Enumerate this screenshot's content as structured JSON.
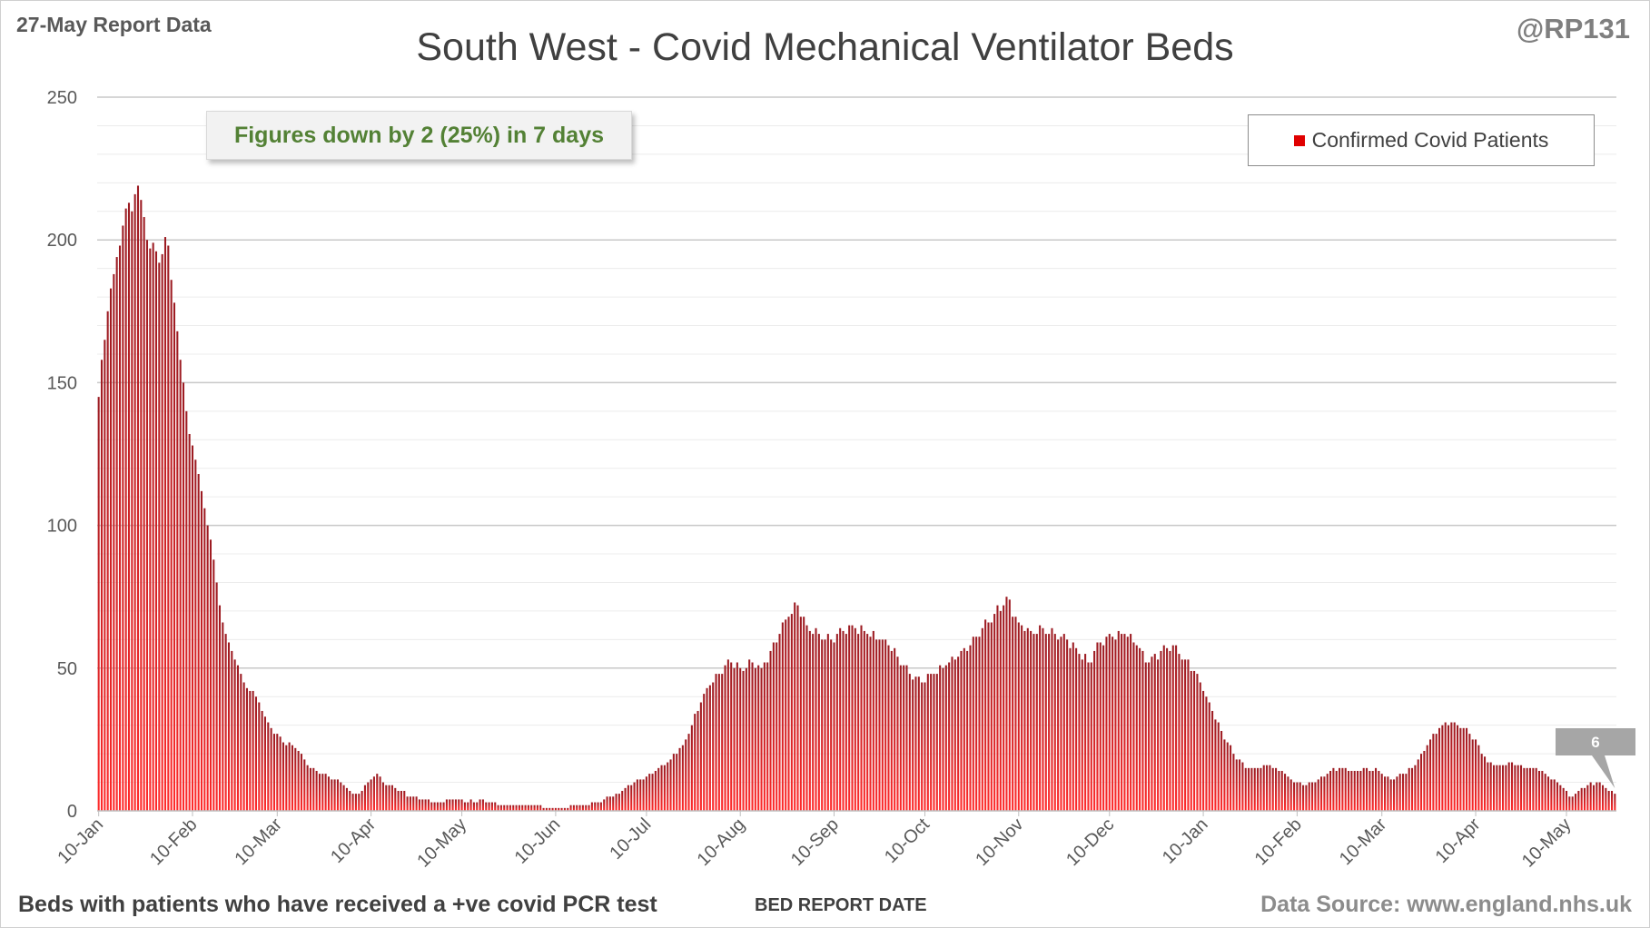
{
  "header": {
    "report_date": "27-May Report Data",
    "handle": "@RP131",
    "title": "South West - Covid Mechanical Ventilator Beds"
  },
  "footer": {
    "note": "Beds with patients who have received a +ve covid PCR test",
    "source": "Data Source: www.england.nhs.uk",
    "x_axis_title": "BED REPORT DATE"
  },
  "callout": {
    "text": "Figures down by 2 (25%) in 7 days"
  },
  "legend": {
    "label": "Confirmed Covid Patients",
    "color": "#e00000"
  },
  "chart_data": {
    "type": "bar",
    "title": "South West - Covid Mechanical Ventilator Beds",
    "xlabel": "BED REPORT DATE",
    "ylabel": "",
    "ylim": [
      0,
      250
    ],
    "y_ticks": [
      0,
      50,
      100,
      150,
      200,
      250
    ],
    "grid": true,
    "legend_position": "top-right",
    "bar_color_top": "#9b1b22",
    "bar_color_bottom": "#ff2a2a",
    "x_tick_labels": [
      "10-Jan",
      "10-Feb",
      "10-Mar",
      "10-Apr",
      "10-May",
      "10-Jun",
      "10-Jul",
      "10-Aug",
      "10-Sep",
      "10-Oct",
      "10-Nov",
      "10-Dec",
      "10-Jan",
      "10-Feb",
      "10-Mar",
      "10-Apr",
      "10-May"
    ],
    "first_date": "2021-01-10",
    "last_date": "2022-05-26",
    "series": [
      {
        "name": "Confirmed Covid Patients",
        "anchors": [
          [
            "2021-01-10",
            145
          ],
          [
            "2021-01-11",
            158
          ],
          [
            "2021-01-12",
            165
          ],
          [
            "2021-01-13",
            175
          ],
          [
            "2021-01-14",
            183
          ],
          [
            "2021-01-15",
            188
          ],
          [
            "2021-01-16",
            194
          ],
          [
            "2021-01-17",
            198
          ],
          [
            "2021-01-18",
            205
          ],
          [
            "2021-01-19",
            211
          ],
          [
            "2021-01-20",
            213
          ],
          [
            "2021-01-21",
            210
          ],
          [
            "2021-01-22",
            216
          ],
          [
            "2021-01-23",
            219
          ],
          [
            "2021-01-24",
            214
          ],
          [
            "2021-01-25",
            208
          ],
          [
            "2021-01-26",
            200
          ],
          [
            "2021-01-27",
            197
          ],
          [
            "2021-01-28",
            199
          ],
          [
            "2021-01-29",
            196
          ],
          [
            "2021-01-30",
            192
          ],
          [
            "2021-01-31",
            195
          ],
          [
            "2021-02-01",
            201
          ],
          [
            "2021-02-02",
            198
          ],
          [
            "2021-02-03",
            186
          ],
          [
            "2021-02-04",
            178
          ],
          [
            "2021-02-05",
            168
          ],
          [
            "2021-02-06",
            158
          ],
          [
            "2021-02-07",
            150
          ],
          [
            "2021-02-08",
            140
          ],
          [
            "2021-02-09",
            132
          ],
          [
            "2021-02-10",
            128
          ],
          [
            "2021-02-11",
            123
          ],
          [
            "2021-02-12",
            118
          ],
          [
            "2021-02-13",
            112
          ],
          [
            "2021-02-14",
            106
          ],
          [
            "2021-02-15",
            100
          ],
          [
            "2021-02-16",
            95
          ],
          [
            "2021-02-17",
            88
          ],
          [
            "2021-02-18",
            80
          ],
          [
            "2021-02-19",
            72
          ],
          [
            "2021-02-20",
            66
          ],
          [
            "2021-02-21",
            62
          ],
          [
            "2021-02-22",
            59
          ],
          [
            "2021-02-23",
            56
          ],
          [
            "2021-02-24",
            53
          ],
          [
            "2021-02-25",
            51
          ],
          [
            "2021-02-26",
            48
          ],
          [
            "2021-02-27",
            45
          ],
          [
            "2021-02-28",
            43
          ],
          [
            "2021-03-01",
            42
          ],
          [
            "2021-03-02",
            42
          ],
          [
            "2021-03-03",
            40
          ],
          [
            "2021-03-04",
            38
          ],
          [
            "2021-03-05",
            35
          ],
          [
            "2021-03-06",
            33
          ],
          [
            "2021-03-07",
            31
          ],
          [
            "2021-03-08",
            29
          ],
          [
            "2021-03-10",
            27
          ],
          [
            "2021-03-12",
            24
          ],
          [
            "2021-03-15",
            23
          ],
          [
            "2021-03-18",
            20
          ],
          [
            "2021-03-20",
            16
          ],
          [
            "2021-03-23",
            14
          ],
          [
            "2021-03-27",
            12
          ],
          [
            "2021-03-31",
            10
          ],
          [
            "2021-04-03",
            7
          ],
          [
            "2021-04-06",
            6
          ],
          [
            "2021-04-08",
            9
          ],
          [
            "2021-04-10",
            11
          ],
          [
            "2021-04-12",
            13
          ],
          [
            "2021-04-14",
            10
          ],
          [
            "2021-04-17",
            9
          ],
          [
            "2021-04-20",
            7
          ],
          [
            "2021-04-23",
            5
          ],
          [
            "2021-04-28",
            4
          ],
          [
            "2021-05-03",
            3
          ],
          [
            "2021-05-08",
            4
          ],
          [
            "2021-05-12",
            3
          ],
          [
            "2021-05-16",
            4
          ],
          [
            "2021-05-20",
            3
          ],
          [
            "2021-05-25",
            2
          ],
          [
            "2021-05-30",
            2
          ],
          [
            "2021-06-04",
            2
          ],
          [
            "2021-06-08",
            1
          ],
          [
            "2021-06-12",
            1
          ],
          [
            "2021-06-16",
            2
          ],
          [
            "2021-06-20",
            2
          ],
          [
            "2021-06-24",
            3
          ],
          [
            "2021-06-28",
            5
          ],
          [
            "2021-07-02",
            7
          ],
          [
            "2021-07-06",
            10
          ],
          [
            "2021-07-10",
            12
          ],
          [
            "2021-07-14",
            15
          ],
          [
            "2021-07-18",
            18
          ],
          [
            "2021-07-22",
            23
          ],
          [
            "2021-07-25",
            30
          ],
          [
            "2021-07-28",
            38
          ],
          [
            "2021-07-31",
            44
          ],
          [
            "2021-08-03",
            48
          ],
          [
            "2021-08-06",
            53
          ],
          [
            "2021-08-10",
            50
          ],
          [
            "2021-08-14",
            52
          ],
          [
            "2021-08-17",
            50
          ],
          [
            "2021-08-20",
            56
          ],
          [
            "2021-08-23",
            62
          ],
          [
            "2021-08-26",
            68
          ],
          [
            "2021-08-29",
            72
          ],
          [
            "2021-09-01",
            65
          ],
          [
            "2021-09-05",
            62
          ],
          [
            "2021-09-09",
            60
          ],
          [
            "2021-09-13",
            63
          ],
          [
            "2021-09-17",
            64
          ],
          [
            "2021-09-21",
            62
          ],
          [
            "2021-09-25",
            60
          ],
          [
            "2021-09-28",
            58
          ],
          [
            "2021-10-01",
            54
          ],
          [
            "2021-10-05",
            48
          ],
          [
            "2021-10-09",
            45
          ],
          [
            "2021-10-13",
            48
          ],
          [
            "2021-10-17",
            51
          ],
          [
            "2021-10-21",
            54
          ],
          [
            "2021-10-25",
            58
          ],
          [
            "2021-10-29",
            64
          ],
          [
            "2021-11-02",
            69
          ],
          [
            "2021-11-06",
            75
          ],
          [
            "2021-11-10",
            66
          ],
          [
            "2021-11-14",
            63
          ],
          [
            "2021-11-18",
            64
          ],
          [
            "2021-11-22",
            62
          ],
          [
            "2021-11-26",
            60
          ],
          [
            "2021-11-30",
            55
          ],
          [
            "2021-12-03",
            52
          ],
          [
            "2021-12-07",
            59
          ],
          [
            "2021-12-11",
            61
          ],
          [
            "2021-12-15",
            62
          ],
          [
            "2021-12-19",
            58
          ],
          [
            "2021-12-23",
            52
          ],
          [
            "2021-12-27",
            56
          ],
          [
            "2021-12-31",
            58
          ],
          [
            "2022-01-04",
            53
          ],
          [
            "2022-01-08",
            48
          ],
          [
            "2022-01-10",
            42
          ],
          [
            "2022-01-13",
            35
          ],
          [
            "2022-01-16",
            28
          ],
          [
            "2022-01-20",
            20
          ],
          [
            "2022-01-24",
            15
          ],
          [
            "2022-01-28",
            15
          ],
          [
            "2022-02-01",
            16
          ],
          [
            "2022-02-05",
            14
          ],
          [
            "2022-02-09",
            10
          ],
          [
            "2022-02-13",
            9
          ],
          [
            "2022-02-17",
            11
          ],
          [
            "2022-02-21",
            14
          ],
          [
            "2022-02-25",
            15
          ],
          [
            "2022-03-01",
            14
          ],
          [
            "2022-03-05",
            15
          ],
          [
            "2022-03-09",
            14
          ],
          [
            "2022-03-13",
            11
          ],
          [
            "2022-03-17",
            13
          ],
          [
            "2022-03-21",
            16
          ],
          [
            "2022-03-25",
            23
          ],
          [
            "2022-03-29",
            29
          ],
          [
            "2022-04-02",
            31
          ],
          [
            "2022-04-06",
            29
          ],
          [
            "2022-04-10",
            25
          ],
          [
            "2022-04-14",
            17
          ],
          [
            "2022-04-18",
            16
          ],
          [
            "2022-04-22",
            17
          ],
          [
            "2022-04-26",
            15
          ],
          [
            "2022-04-30",
            15
          ],
          [
            "2022-05-04",
            12
          ],
          [
            "2022-05-08",
            9
          ],
          [
            "2022-05-11",
            5
          ],
          [
            "2022-05-14",
            7
          ],
          [
            "2022-05-17",
            9
          ],
          [
            "2022-05-20",
            10
          ],
          [
            "2022-05-23",
            8
          ],
          [
            "2022-05-26",
            6
          ]
        ],
        "last_value": 6
      }
    ]
  }
}
